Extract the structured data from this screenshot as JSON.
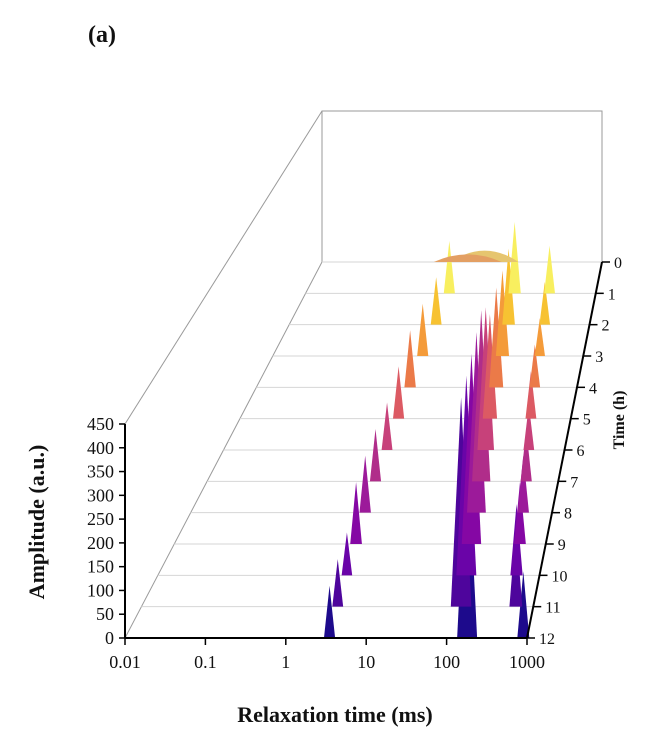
{
  "panel_label": "(a)",
  "chart_data": {
    "type": "area",
    "projection": "3d waterfall",
    "xlabel": "Relaxation time (ms)",
    "ylabel": "Amplitude (a.u.)",
    "zlabel": "Time (h)",
    "x_scale": "log",
    "xlim": [
      0.01,
      1000
    ],
    "ylim": [
      0,
      450
    ],
    "x_ticks": [
      "0.01",
      "0.1",
      "1",
      "10",
      "100",
      "1000"
    ],
    "y_ticks": [
      "0",
      "50",
      "100",
      "150",
      "200",
      "250",
      "300",
      "350",
      "400",
      "450"
    ],
    "z_ticks": [
      "0",
      "1",
      "2",
      "3",
      "4",
      "5",
      "6",
      "7",
      "8",
      "9",
      "10",
      "11",
      "12"
    ],
    "grid": true,
    "series": [
      {
        "time": 0,
        "color": "#1d0a8c",
        "peaks": [
          {
            "x": 3.5,
            "y": 110
          },
          {
            "x": 180,
            "y": 420
          },
          {
            "x": 900,
            "y": 140
          }
        ]
      },
      {
        "time": 1,
        "color": "#4e059c",
        "peaks": [
          {
            "x": 3.2,
            "y": 100
          },
          {
            "x": 120,
            "y": 440
          },
          {
            "x": 600,
            "y": 170
          }
        ]
      },
      {
        "time": 2,
        "color": "#6a04a8",
        "peaks": [
          {
            "x": 3.0,
            "y": 90
          },
          {
            "x": 110,
            "y": 420
          },
          {
            "x": 500,
            "y": 150
          }
        ]
      },
      {
        "time": 3,
        "color": "#8507a4",
        "peaks": [
          {
            "x": 2.8,
            "y": 130
          },
          {
            "x": 100,
            "y": 400
          },
          {
            "x": 450,
            "y": 130
          }
        ]
      },
      {
        "time": 4,
        "color": "#9c1a9a",
        "peaks": [
          {
            "x": 2.6,
            "y": 120
          },
          {
            "x": 90,
            "y": 380
          },
          {
            "x": 400,
            "y": 120
          }
        ]
      },
      {
        "time": 5,
        "color": "#b02d8a",
        "peaks": [
          {
            "x": 2.5,
            "y": 110
          },
          {
            "x": 80,
            "y": 360
          },
          {
            "x": 350,
            "y": 110
          }
        ]
      },
      {
        "time": 6,
        "color": "#c7417a",
        "peaks": [
          {
            "x": 2.5,
            "y": 100
          },
          {
            "x": 70,
            "y": 300
          },
          {
            "x": 300,
            "y": 95
          }
        ]
      },
      {
        "time": 7,
        "color": "#dc5a63",
        "peaks": [
          {
            "x": 2.5,
            "y": 110
          },
          {
            "x": 60,
            "y": 220
          },
          {
            "x": 250,
            "y": 100
          }
        ]
      },
      {
        "time": 8,
        "color": "#eb7a48",
        "peaks": [
          {
            "x": 2.5,
            "y": 120
          },
          {
            "x": 55,
            "y": 210
          },
          {
            "x": 220,
            "y": 90
          }
        ]
      },
      {
        "time": 9,
        "color": "#f49b3a",
        "peaks": [
          {
            "x": 2.6,
            "y": 110
          },
          {
            "x": 50,
            "y": 180
          },
          {
            "x": 200,
            "y": 80
          }
        ]
      },
      {
        "time": 10,
        "color": "#f7c232",
        "peaks": [
          {
            "x": 2.8,
            "y": 100
          },
          {
            "x": 45,
            "y": 160
          },
          {
            "x": 180,
            "y": 90
          }
        ]
      },
      {
        "time": 11,
        "color": "#f8ef5f",
        "peaks": [
          {
            "x": 3.0,
            "y": 110
          },
          {
            "x": 40,
            "y": 150
          },
          {
            "x": 160,
            "y": 100
          }
        ]
      },
      {
        "time": 12,
        "color": "#e6c56f",
        "peaks": [
          {
            "x": 8,
            "y": 30
          }
        ]
      },
      {
        "time": 13,
        "color": "#e39f63",
        "peaks": [
          {
            "x": 4,
            "y": 20
          }
        ]
      }
    ]
  }
}
